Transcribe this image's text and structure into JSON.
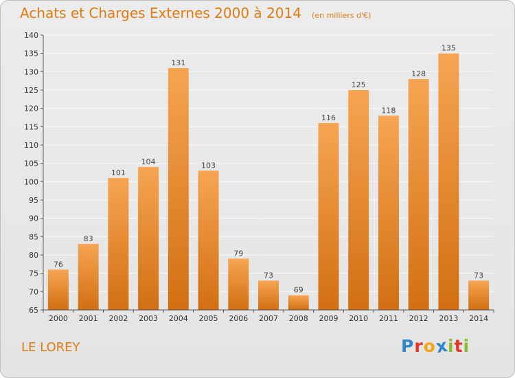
{
  "chart_data": {
    "type": "bar",
    "title": "Achats et Charges Externes 2000 à 2014",
    "unit": "(en milliers d'€)",
    "categories": [
      "2000",
      "2001",
      "2002",
      "2003",
      "2004",
      "2005",
      "2006",
      "2007",
      "2008",
      "2009",
      "2010",
      "2011",
      "2012",
      "2013",
      "2014"
    ],
    "values": [
      76,
      83,
      101,
      104,
      131,
      103,
      79,
      73,
      69,
      116,
      125,
      118,
      128,
      135,
      73
    ],
    "ylim": [
      65,
      140
    ],
    "yticks": [
      65,
      70,
      75,
      80,
      85,
      90,
      95,
      100,
      105,
      110,
      115,
      120,
      125,
      130,
      135,
      140
    ],
    "grid": true,
    "bar_color": "#f0902c"
  },
  "commune": "LE LOREY",
  "logo": {
    "letters": [
      {
        "char": "P",
        "color": "#2f86c8"
      },
      {
        "char": "r",
        "color": "#e0362c"
      },
      {
        "char": "o",
        "color": "#f0a51a"
      },
      {
        "char": "x",
        "color": "#2f86c8"
      },
      {
        "char": "i",
        "color": "#8dbb2e"
      },
      {
        "char": "t",
        "color": "#e0362c"
      },
      {
        "char": "i",
        "color": "#8dbb2e"
      }
    ]
  }
}
